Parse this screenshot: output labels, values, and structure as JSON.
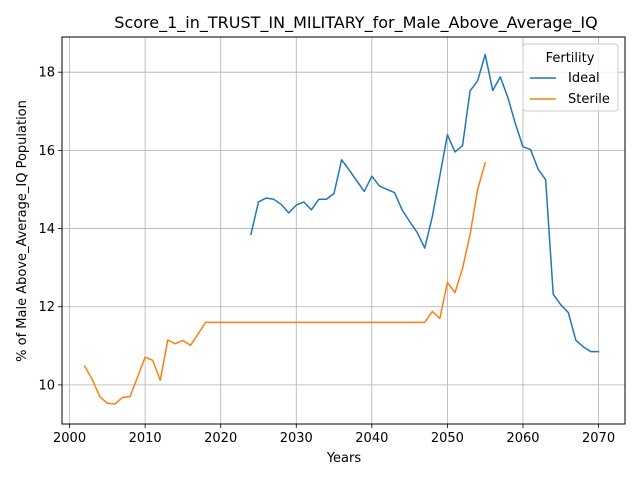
{
  "chart_data": {
    "type": "line",
    "title": "Score_1_in_TRUST_IN_MILITARY_for_Male_Above_Average_IQ",
    "xlabel": "Years",
    "ylabel": "% of Male Above_Average_IQ Population",
    "xlim": [
      1999,
      2073.5
    ],
    "ylim": [
      9.0,
      18.9
    ],
    "xticks": [
      2000,
      2010,
      2020,
      2030,
      2040,
      2050,
      2060,
      2070
    ],
    "yticks": [
      10,
      12,
      14,
      16,
      18
    ],
    "grid": true,
    "legend": {
      "title": "Fertility",
      "position": "top-right"
    },
    "series": [
      {
        "name": "Ideal",
        "color": "#1f77b4",
        "x": [
          2024,
          2025,
          2026,
          2027,
          2028,
          2029,
          2030,
          2031,
          2032,
          2033,
          2034,
          2035,
          2036,
          2037,
          2038,
          2039,
          2040,
          2041,
          2042,
          2043,
          2044,
          2045,
          2046,
          2047,
          2048,
          2049,
          2050,
          2051,
          2052,
          2053,
          2054,
          2055,
          2056,
          2057,
          2058,
          2059,
          2060,
          2061,
          2062,
          2063,
          2064,
          2065,
          2066,
          2067,
          2068,
          2069,
          2070
        ],
        "y": [
          13.85,
          14.68,
          14.78,
          14.75,
          14.62,
          14.4,
          14.6,
          14.68,
          14.48,
          14.75,
          14.75,
          14.9,
          15.76,
          15.5,
          15.22,
          14.95,
          15.34,
          15.09,
          15.0,
          14.92,
          14.48,
          14.18,
          13.9,
          13.5,
          14.3,
          15.35,
          16.4,
          15.96,
          16.12,
          17.52,
          17.78,
          18.45,
          17.53,
          17.88,
          17.35,
          16.68,
          16.09,
          16.02,
          15.52,
          15.25,
          12.32,
          12.05,
          11.85,
          11.14,
          10.97,
          10.85,
          10.85
        ]
      },
      {
        "name": "Sterile",
        "color": "#ff7f0e",
        "x": [
          2002,
          2003,
          2004,
          2005,
          2006,
          2007,
          2008,
          2009,
          2010,
          2011,
          2012,
          2013,
          2014,
          2015,
          2016,
          2017,
          2018,
          2019,
          2020,
          2021,
          2022,
          2023,
          2024,
          2025,
          2026,
          2027,
          2028,
          2029,
          2030,
          2031,
          2032,
          2033,
          2034,
          2035,
          2036,
          2037,
          2038,
          2039,
          2040,
          2041,
          2042,
          2043,
          2044,
          2045,
          2046,
          2047,
          2048,
          2049,
          2050,
          2051,
          2052,
          2053,
          2054,
          2055
        ],
        "y": [
          10.48,
          10.14,
          9.7,
          9.53,
          9.51,
          9.68,
          9.7,
          10.2,
          10.71,
          10.63,
          10.12,
          11.15,
          11.05,
          11.14,
          11.01,
          11.3,
          11.6,
          11.6,
          11.6,
          11.6,
          11.6,
          11.6,
          11.6,
          11.6,
          11.6,
          11.6,
          11.6,
          11.6,
          11.6,
          11.6,
          11.6,
          11.6,
          11.6,
          11.6,
          11.6,
          11.6,
          11.6,
          11.6,
          11.6,
          11.6,
          11.6,
          11.6,
          11.6,
          11.6,
          11.6,
          11.6,
          11.88,
          11.7,
          12.62,
          12.36,
          12.98,
          13.85,
          15.0,
          15.68
        ]
      }
    ]
  }
}
